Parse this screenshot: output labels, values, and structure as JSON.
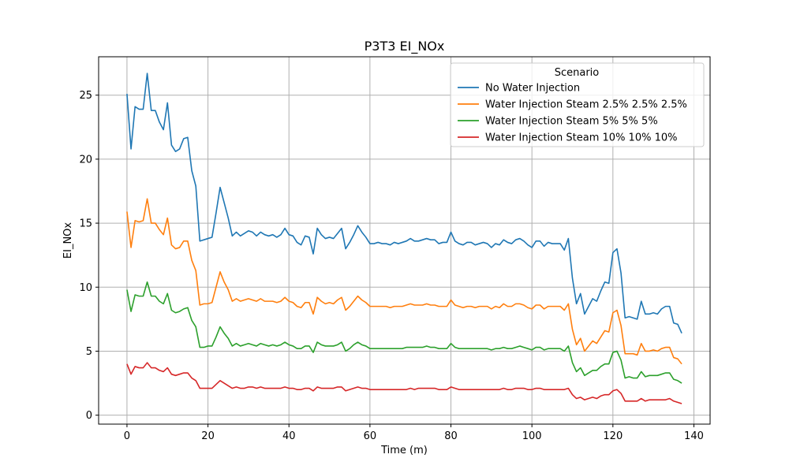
{
  "chart_data": {
    "type": "line",
    "title": "P3T3 EI_NOx",
    "xlabel": "Time (m)",
    "ylabel": "EI_NOx",
    "xlim": [
      -7,
      144
    ],
    "ylim": [
      -0.7,
      28.0
    ],
    "xticks": [
      0,
      20,
      40,
      60,
      80,
      100,
      120,
      140
    ],
    "yticks": [
      0,
      5,
      10,
      15,
      20,
      25
    ],
    "grid": true,
    "legend": {
      "title": "Scenario",
      "placement": "top-right"
    },
    "x": [
      0,
      1,
      2,
      3,
      4,
      5,
      6,
      7,
      8,
      9,
      10,
      11,
      12,
      13,
      14,
      15,
      16,
      17,
      18,
      19,
      20,
      21,
      22,
      23,
      24,
      25,
      26,
      27,
      28,
      29,
      30,
      31,
      32,
      33,
      34,
      35,
      36,
      37,
      38,
      39,
      40,
      41,
      42,
      43,
      44,
      45,
      46,
      47,
      48,
      49,
      50,
      51,
      52,
      53,
      54,
      55,
      56,
      57,
      58,
      59,
      60,
      61,
      62,
      63,
      64,
      65,
      66,
      67,
      68,
      69,
      70,
      71,
      72,
      73,
      74,
      75,
      76,
      77,
      78,
      79,
      80,
      81,
      82,
      83,
      84,
      85,
      86,
      87,
      88,
      89,
      90,
      91,
      92,
      93,
      94,
      95,
      96,
      97,
      98,
      99,
      100,
      101,
      102,
      103,
      104,
      105,
      106,
      107,
      108,
      109,
      110,
      111,
      112,
      113,
      114,
      115,
      116,
      117,
      118,
      119,
      120,
      121,
      122,
      123,
      124,
      125,
      126,
      127,
      128,
      129,
      130,
      131,
      132,
      133,
      134,
      135,
      136,
      137
    ],
    "series": [
      {
        "name": "No Water Injection",
        "color": "#1f77b4",
        "values": [
          25.1,
          20.8,
          24.1,
          23.9,
          23.9,
          26.7,
          23.8,
          23.8,
          22.9,
          22.3,
          24.4,
          21.1,
          20.6,
          20.8,
          21.6,
          21.7,
          19.1,
          17.9,
          13.6,
          13.7,
          13.8,
          13.9,
          15.8,
          17.8,
          16.6,
          15.4,
          14.0,
          14.3,
          14.0,
          14.2,
          14.4,
          14.3,
          14.0,
          14.3,
          14.1,
          14.0,
          14.1,
          13.9,
          14.1,
          14.6,
          14.1,
          14.0,
          13.5,
          13.3,
          14.0,
          13.9,
          12.6,
          14.6,
          14.1,
          13.8,
          13.9,
          13.8,
          14.2,
          14.6,
          13.0,
          13.5,
          14.1,
          14.8,
          14.3,
          13.9,
          13.4,
          13.4,
          13.5,
          13.4,
          13.4,
          13.3,
          13.5,
          13.4,
          13.5,
          13.6,
          13.8,
          13.6,
          13.6,
          13.7,
          13.8,
          13.7,
          13.7,
          13.4,
          13.5,
          13.5,
          14.3,
          13.6,
          13.4,
          13.3,
          13.5,
          13.5,
          13.3,
          13.4,
          13.5,
          13.4,
          13.1,
          13.4,
          13.3,
          13.7,
          13.5,
          13.4,
          13.7,
          13.8,
          13.6,
          13.3,
          13.1,
          13.6,
          13.6,
          13.2,
          13.5,
          13.4,
          13.4,
          13.4,
          12.9,
          13.8,
          10.7,
          8.7,
          9.5,
          7.9,
          8.5,
          9.1,
          8.9,
          9.7,
          10.4,
          10.3,
          12.7,
          13.0,
          11.1,
          7.6,
          7.7,
          7.6,
          7.5,
          8.9,
          7.9,
          7.9,
          8.0,
          7.9,
          8.3,
          8.5,
          8.5,
          7.2,
          7.1,
          6.4
        ]
      },
      {
        "name": "Water Injection Steam 2.5% 2.5% 2.5%",
        "color": "#ff7f0e",
        "values": [
          15.9,
          13.1,
          15.2,
          15.1,
          15.2,
          16.9,
          15.0,
          15.0,
          14.5,
          14.1,
          15.4,
          13.3,
          13.0,
          13.1,
          13.6,
          13.6,
          12.1,
          11.3,
          8.6,
          8.7,
          8.7,
          8.8,
          10.0,
          11.2,
          10.4,
          9.8,
          8.9,
          9.1,
          8.9,
          9.0,
          9.1,
          9.0,
          8.9,
          9.1,
          8.9,
          8.9,
          8.9,
          8.8,
          8.9,
          9.2,
          8.9,
          8.8,
          8.5,
          8.4,
          8.8,
          8.8,
          7.9,
          9.2,
          8.9,
          8.7,
          8.8,
          8.7,
          9.0,
          9.2,
          8.2,
          8.5,
          8.9,
          9.3,
          9.0,
          8.8,
          8.5,
          8.5,
          8.5,
          8.5,
          8.5,
          8.4,
          8.5,
          8.5,
          8.5,
          8.6,
          8.7,
          8.6,
          8.6,
          8.6,
          8.7,
          8.6,
          8.6,
          8.5,
          8.5,
          8.5,
          9.0,
          8.6,
          8.5,
          8.4,
          8.5,
          8.5,
          8.4,
          8.5,
          8.5,
          8.5,
          8.3,
          8.5,
          8.4,
          8.7,
          8.5,
          8.5,
          8.7,
          8.7,
          8.6,
          8.4,
          8.3,
          8.6,
          8.6,
          8.3,
          8.5,
          8.5,
          8.5,
          8.5,
          8.2,
          8.7,
          6.7,
          5.5,
          6.0,
          5.0,
          5.4,
          5.8,
          5.6,
          6.1,
          6.6,
          6.5,
          8.0,
          8.2,
          7.0,
          4.8,
          4.8,
          4.8,
          4.7,
          5.6,
          5.0,
          5.0,
          5.1,
          5.0,
          5.2,
          5.3,
          5.3,
          4.5,
          4.4,
          4.0
        ]
      },
      {
        "name": "Water Injection Steam 5% 5% 5%",
        "color": "#2ca02c",
        "values": [
          9.8,
          8.1,
          9.4,
          9.3,
          9.3,
          10.4,
          9.3,
          9.3,
          8.9,
          8.7,
          9.5,
          8.2,
          8.0,
          8.1,
          8.3,
          8.4,
          7.4,
          6.9,
          5.3,
          5.3,
          5.4,
          5.4,
          6.1,
          6.9,
          6.4,
          6.0,
          5.4,
          5.6,
          5.4,
          5.5,
          5.6,
          5.5,
          5.4,
          5.6,
          5.5,
          5.4,
          5.5,
          5.4,
          5.5,
          5.7,
          5.5,
          5.4,
          5.2,
          5.2,
          5.4,
          5.4,
          4.9,
          5.7,
          5.5,
          5.4,
          5.4,
          5.4,
          5.5,
          5.7,
          5.0,
          5.2,
          5.5,
          5.7,
          5.5,
          5.4,
          5.2,
          5.2,
          5.2,
          5.2,
          5.2,
          5.2,
          5.2,
          5.2,
          5.2,
          5.3,
          5.3,
          5.3,
          5.3,
          5.3,
          5.4,
          5.3,
          5.3,
          5.2,
          5.2,
          5.2,
          5.6,
          5.3,
          5.2,
          5.2,
          5.2,
          5.2,
          5.2,
          5.2,
          5.2,
          5.2,
          5.1,
          5.2,
          5.2,
          5.3,
          5.2,
          5.2,
          5.3,
          5.4,
          5.3,
          5.2,
          5.1,
          5.3,
          5.3,
          5.1,
          5.2,
          5.2,
          5.2,
          5.2,
          5.0,
          5.4,
          4.1,
          3.4,
          3.7,
          3.1,
          3.3,
          3.5,
          3.5,
          3.8,
          4.0,
          4.0,
          4.9,
          5.0,
          4.3,
          2.9,
          3.0,
          2.9,
          2.9,
          3.4,
          3.0,
          3.1,
          3.1,
          3.1,
          3.2,
          3.3,
          3.3,
          2.8,
          2.7,
          2.5
        ]
      },
      {
        "name": "Water Injection Steam 10% 10% 10%",
        "color": "#d62728",
        "values": [
          4.0,
          3.2,
          3.8,
          3.7,
          3.7,
          4.1,
          3.7,
          3.7,
          3.5,
          3.4,
          3.7,
          3.2,
          3.1,
          3.2,
          3.3,
          3.3,
          2.9,
          2.7,
          2.1,
          2.1,
          2.1,
          2.1,
          2.4,
          2.7,
          2.5,
          2.3,
          2.1,
          2.2,
          2.1,
          2.1,
          2.2,
          2.2,
          2.1,
          2.2,
          2.1,
          2.1,
          2.1,
          2.1,
          2.1,
          2.2,
          2.1,
          2.1,
          2.0,
          2.0,
          2.1,
          2.1,
          1.9,
          2.2,
          2.1,
          2.1,
          2.1,
          2.1,
          2.2,
          2.2,
          1.9,
          2.0,
          2.1,
          2.2,
          2.1,
          2.1,
          2.0,
          2.0,
          2.0,
          2.0,
          2.0,
          2.0,
          2.0,
          2.0,
          2.0,
          2.0,
          2.1,
          2.0,
          2.1,
          2.1,
          2.1,
          2.1,
          2.1,
          2.0,
          2.0,
          2.0,
          2.2,
          2.1,
          2.0,
          2.0,
          2.0,
          2.0,
          2.0,
          2.0,
          2.0,
          2.0,
          2.0,
          2.0,
          2.0,
          2.1,
          2.0,
          2.0,
          2.1,
          2.1,
          2.1,
          2.0,
          2.0,
          2.1,
          2.1,
          2.0,
          2.0,
          2.0,
          2.0,
          2.0,
          2.0,
          2.1,
          1.6,
          1.3,
          1.4,
          1.2,
          1.3,
          1.4,
          1.3,
          1.5,
          1.6,
          1.6,
          1.9,
          2.0,
          1.7,
          1.1,
          1.1,
          1.1,
          1.1,
          1.3,
          1.1,
          1.2,
          1.2,
          1.2,
          1.2,
          1.2,
          1.3,
          1.1,
          1.0,
          0.9
        ]
      }
    ]
  }
}
